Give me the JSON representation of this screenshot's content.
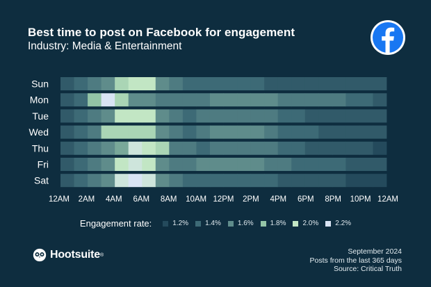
{
  "title": "Best time to post on Facebook for engagement",
  "subtitle": "Industry: Media & Entertainment",
  "logo_icon": "facebook-icon",
  "brand": "Hootsuite",
  "brand_icon": "owl-icon",
  "brand_mark": "®",
  "footer": {
    "date": "September 2024",
    "posts": "Posts from the last 365 days",
    "source": "Source: Critical Truth"
  },
  "legend": {
    "title": "Engagement rate:",
    "items": [
      {
        "label": "1.2%",
        "value": 1.2,
        "color": "#244a5c"
      },
      {
        "label": "1.4%",
        "value": 1.4,
        "color": "#3d6a76"
      },
      {
        "label": "1.6%",
        "value": 1.6,
        "color": "#5f8c8b"
      },
      {
        "label": "1.8%",
        "value": 1.8,
        "color": "#93c4a6"
      },
      {
        "label": "2.0%",
        "value": 2.0,
        "color": "#c2e6c4"
      },
      {
        "label": "2.2%",
        "value": 2.2,
        "color": "#d9e4f4"
      }
    ]
  },
  "chart_data": {
    "type": "heatmap",
    "title": "Best time to post on Facebook for engagement",
    "subtitle": "Industry: Media & Entertainment",
    "rows": [
      "Sun",
      "Mon",
      "Tue",
      "Wed",
      "Thu",
      "Fri",
      "Sat"
    ],
    "columns": [
      "12AM",
      "1AM",
      "2AM",
      "3AM",
      "4AM",
      "5AM",
      "6AM",
      "7AM",
      "8AM",
      "9AM",
      "10AM",
      "11AM",
      "12PM",
      "1PM",
      "2PM",
      "3PM",
      "4PM",
      "5PM",
      "6PM",
      "7PM",
      "8PM",
      "9PM",
      "10PM",
      "11PM"
    ],
    "x_tick_labels": [
      "12AM",
      "2AM",
      "4AM",
      "6AM",
      "8AM",
      "10AM",
      "12PM",
      "2PM",
      "4PM",
      "6PM",
      "8PM",
      "10PM",
      "12AM"
    ],
    "unit": "%",
    "values": [
      [
        1.3,
        1.4,
        1.5,
        1.6,
        1.9,
        2.0,
        2.0,
        1.6,
        1.5,
        1.4,
        1.4,
        1.4,
        1.4,
        1.4,
        1.4,
        1.3,
        1.3,
        1.3,
        1.3,
        1.3,
        1.3,
        1.3,
        1.3,
        1.3
      ],
      [
        1.3,
        1.4,
        1.8,
        2.2,
        1.9,
        1.6,
        1.6,
        1.5,
        1.5,
        1.5,
        1.5,
        1.6,
        1.6,
        1.6,
        1.6,
        1.6,
        1.5,
        1.5,
        1.5,
        1.5,
        1.5,
        1.4,
        1.4,
        1.3
      ],
      [
        1.3,
        1.4,
        1.5,
        1.6,
        2.0,
        2.0,
        2.0,
        1.6,
        1.5,
        1.4,
        1.5,
        1.5,
        1.5,
        1.5,
        1.5,
        1.5,
        1.4,
        1.4,
        1.3,
        1.3,
        1.3,
        1.3,
        1.3,
        1.3
      ],
      [
        1.3,
        1.4,
        1.5,
        1.9,
        1.9,
        1.9,
        1.9,
        1.6,
        1.5,
        1.4,
        1.5,
        1.6,
        1.6,
        1.6,
        1.6,
        1.5,
        1.4,
        1.4,
        1.4,
        1.3,
        1.3,
        1.3,
        1.3,
        1.3
      ],
      [
        1.3,
        1.4,
        1.5,
        1.6,
        1.7,
        2.1,
        2.0,
        1.9,
        1.5,
        1.5,
        1.4,
        1.5,
        1.5,
        1.5,
        1.5,
        1.5,
        1.4,
        1.4,
        1.3,
        1.3,
        1.3,
        1.3,
        1.3,
        1.2
      ],
      [
        1.3,
        1.4,
        1.5,
        1.6,
        2.0,
        2.1,
        2.0,
        1.6,
        1.5,
        1.5,
        1.6,
        1.6,
        1.6,
        1.6,
        1.6,
        1.5,
        1.5,
        1.4,
        1.4,
        1.4,
        1.4,
        1.3,
        1.3,
        1.3
      ],
      [
        1.3,
        1.4,
        1.5,
        1.6,
        2.1,
        2.2,
        2.1,
        1.6,
        1.5,
        1.4,
        1.4,
        1.4,
        1.4,
        1.4,
        1.4,
        1.4,
        1.3,
        1.3,
        1.3,
        1.3,
        1.3,
        1.2,
        1.2,
        1.2
      ]
    ],
    "legend_placement": "bottom",
    "grid": false
  }
}
